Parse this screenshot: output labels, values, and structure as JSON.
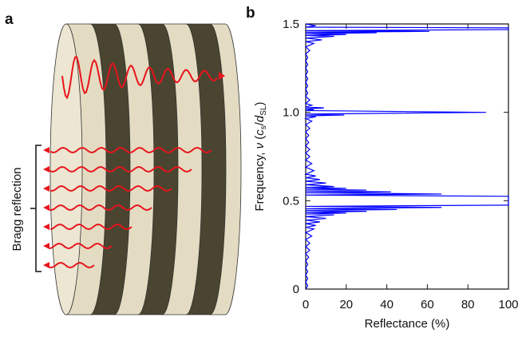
{
  "panel_labels": [
    "a",
    "b"
  ],
  "diagram": {
    "bracket_label": "Bragg reflection"
  },
  "chart_data": {
    "type": "line",
    "orientation": "horizontal",
    "xlabel": "Reflectance (%)",
    "ylabel": [
      "Frequency, ",
      "ν",
      " (",
      "c",
      "s",
      "/",
      "d",
      "SL",
      ")"
    ],
    "xlim": [
      0,
      100
    ],
    "xticks": [
      0,
      20,
      40,
      60,
      80,
      100
    ],
    "ylim": [
      0,
      1.5
    ],
    "yticks": [
      0,
      0.5,
      {
        "value": 1,
        "label": "1.0"
      },
      1.5
    ],
    "color": "#0000ff",
    "frequency": [
      0,
      0.02,
      0.04,
      0.06,
      0.08,
      0.1,
      0.12,
      0.14,
      0.16,
      0.18,
      0.2,
      0.22,
      0.24,
      0.26,
      0.28,
      0.3,
      0.32,
      0.34,
      0.35,
      0.36,
      0.37,
      0.38,
      0.39,
      0.4,
      0.41,
      0.42,
      0.425,
      0.43,
      0.435,
      0.44,
      0.445,
      0.45,
      0.455,
      0.462,
      0.468,
      0.475,
      0.525,
      0.532,
      0.538,
      0.545,
      0.55,
      0.555,
      0.56,
      0.565,
      0.57,
      0.575,
      0.58,
      0.59,
      0.6,
      0.61,
      0.62,
      0.63,
      0.64,
      0.65,
      0.67,
      0.69,
      0.71,
      0.73,
      0.75,
      0.77,
      0.79,
      0.81,
      0.83,
      0.85,
      0.87,
      0.89,
      0.91,
      0.93,
      0.95,
      0.965,
      0.975,
      0.98,
      0.985,
      0.99,
      1.0,
      1.01,
      1.015,
      1.02,
      1.025,
      1.03,
      1.04,
      1.05,
      1.07,
      1.09,
      1.11,
      1.13,
      1.15,
      1.17,
      1.19,
      1.21,
      1.23,
      1.25,
      1.27,
      1.29,
      1.31,
      1.33,
      1.35,
      1.37,
      1.39,
      1.4,
      1.41,
      1.42,
      1.43,
      1.435,
      1.44,
      1.445,
      1.45,
      1.453,
      1.458,
      1.462,
      1.468,
      1.478,
      1.482,
      1.49,
      1.5
    ],
    "values": [
      0,
      1,
      0,
      1,
      0,
      1,
      0,
      1,
      0,
      1.5,
      0,
      2,
      0,
      2,
      0,
      3,
      0,
      4,
      0,
      5,
      0,
      7,
      0,
      10,
      0,
      14,
      0,
      20,
      0,
      30,
      0,
      45,
      0,
      67,
      0,
      100,
      100,
      0,
      67,
      0,
      42,
      0,
      30,
      0,
      20,
      0,
      14,
      0,
      10,
      0,
      7,
      0,
      5,
      0,
      4,
      0,
      3,
      0,
      2,
      0,
      2,
      0,
      1.5,
      0,
      1.5,
      0,
      2,
      0,
      3,
      0,
      5,
      0,
      19,
      0,
      89,
      0,
      4,
      0,
      9,
      0,
      3,
      0,
      2,
      0,
      1,
      0,
      1,
      0,
      1,
      0,
      1,
      0,
      1,
      0,
      1,
      0,
      2,
      0,
      4,
      0,
      8,
      0,
      14,
      0,
      20,
      0,
      35,
      0,
      61,
      0,
      100,
      100,
      0,
      5,
      0
    ]
  }
}
